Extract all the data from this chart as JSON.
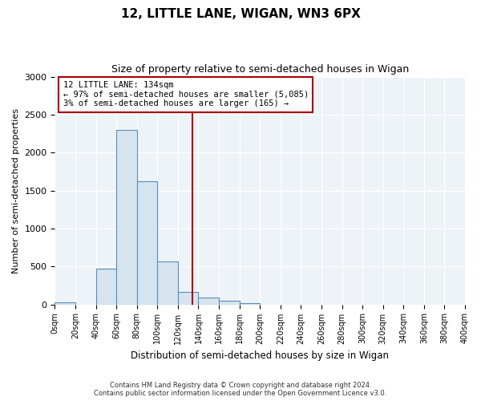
{
  "title": "12, LITTLE LANE, WIGAN, WN3 6PX",
  "subtitle": "Size of property relative to semi-detached houses in Wigan",
  "xlabel": "Distribution of semi-detached houses by size in Wigan",
  "ylabel": "Number of semi-detached properties",
  "footer_line1": "Contains HM Land Registry data © Crown copyright and database right 2024.",
  "footer_line2": "Contains public sector information licensed under the Open Government Licence v3.0.",
  "bin_edges": [
    0,
    20,
    40,
    60,
    80,
    100,
    120,
    140,
    160,
    180,
    200,
    220,
    240,
    260,
    280,
    300,
    320,
    340,
    360,
    380,
    400
  ],
  "bar_heights": [
    30,
    0,
    470,
    2300,
    1620,
    570,
    165,
    90,
    45,
    20,
    0,
    0,
    0,
    0,
    0,
    0,
    0,
    0,
    0,
    0
  ],
  "bar_color": "#d6e4f0",
  "bar_edge_color": "#5b8db8",
  "property_size": 134,
  "annotation_title": "12 LITTLE LANE: 134sqm",
  "annotation_line1": "← 97% of semi-detached houses are smaller (5,085)",
  "annotation_line2": "3% of semi-detached houses are larger (165) →",
  "vline_color": "#aa0000",
  "annotation_box_edge_color": "#aa0000",
  "ylim": [
    0,
    3000
  ],
  "xlim": [
    0,
    400
  ],
  "background_color": "#ffffff",
  "plot_bg_color": "#eef3f8",
  "grid_color": "#ffffff"
}
